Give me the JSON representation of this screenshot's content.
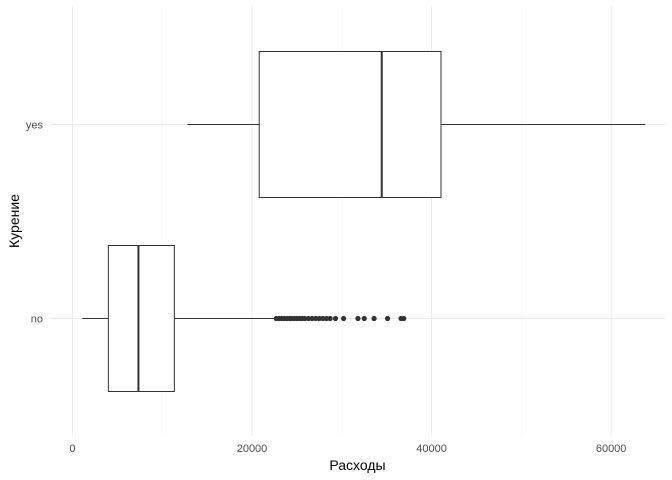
{
  "chart_data": {
    "type": "boxplot",
    "orientation": "horizontal",
    "xlabel": "Расходы",
    "ylabel": "Курение",
    "xlim": [
      -2500,
      66000
    ],
    "x_ticks": [
      0,
      20000,
      40000,
      60000
    ],
    "x_tick_labels": [
      "0",
      "20000",
      "40000",
      "60000"
    ],
    "grid": true,
    "categories": [
      "no",
      "yes"
    ],
    "boxes": [
      {
        "category": "no",
        "whisker_low": 1100,
        "q1": 4000,
        "median": 7350,
        "q3": 11350,
        "whisker_high": 22600,
        "outliers": [
          22700,
          23000,
          23300,
          23600,
          23900,
          24200,
          24400,
          24700,
          25000,
          25300,
          25600,
          25900,
          26300,
          26700,
          27100,
          27500,
          27900,
          28300,
          28700,
          29300,
          30200,
          31800,
          32500,
          33600,
          35100,
          36600,
          36900
        ]
      },
      {
        "category": "yes",
        "whisker_low": 12800,
        "q1": 20800,
        "median": 34450,
        "q3": 41050,
        "whisker_high": 63800,
        "outliers": []
      }
    ]
  }
}
